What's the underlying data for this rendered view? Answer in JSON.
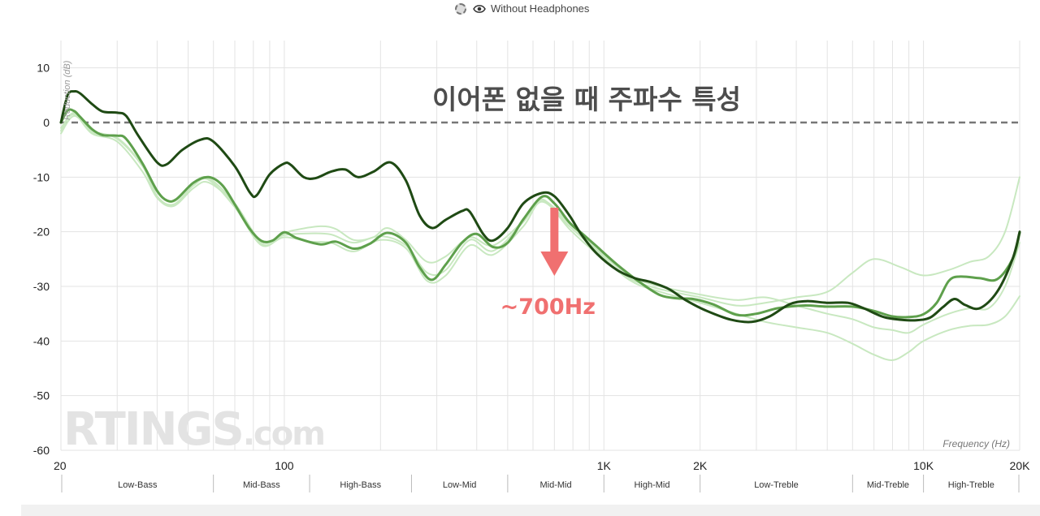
{
  "legend": {
    "label": "Without Headphones",
    "toggle_icon": "dashed-circle-icon",
    "visibility_icon": "eye-icon"
  },
  "annotation": {
    "title": "이어폰 없을 때 주파수 특성",
    "freq_label": "~700Hz",
    "color": "#f07070"
  },
  "watermark": "RTINGS.com",
  "colors": {
    "dark_line": "#1f4a14",
    "mid_line": "#5ea04c",
    "light_line": "#c8e8c0",
    "grid": "#e3e3e3",
    "zero_line": "#777777"
  },
  "chart_data": {
    "type": "line",
    "title": "",
    "xlabel": "Frequency (Hz)",
    "ylabel": "Reduction (dB)",
    "xscale": "log",
    "xlim": [
      20,
      20000
    ],
    "ylim": [
      -60,
      15
    ],
    "yticks": [
      10,
      0,
      -10,
      -20,
      -30,
      -40,
      -50,
      -60
    ],
    "xticks": [
      {
        "value": 20,
        "label": "20"
      },
      {
        "value": 100,
        "label": "100"
      },
      {
        "value": 1000,
        "label": "1K"
      },
      {
        "value": 2000,
        "label": "2K"
      },
      {
        "value": 10000,
        "label": "10K"
      },
      {
        "value": 20000,
        "label": "20K"
      }
    ],
    "bands": [
      {
        "label": "Low-Bass",
        "from": 20,
        "to": 60
      },
      {
        "label": "Mid-Bass",
        "from": 60,
        "to": 120
      },
      {
        "label": "High-Bass",
        "from": 120,
        "to": 250
      },
      {
        "label": "Low-Mid",
        "from": 250,
        "to": 500
      },
      {
        "label": "Mid-Mid",
        "from": 500,
        "to": 1000
      },
      {
        "label": "High-Mid",
        "from": 1000,
        "to": 2000
      },
      {
        "label": "Low-Treble",
        "from": 2000,
        "to": 6000
      },
      {
        "label": "Mid-Treble",
        "from": 6000,
        "to": 10000
      },
      {
        "label": "High-Treble",
        "from": 10000,
        "to": 20000
      }
    ],
    "reference_line": 0,
    "series": [
      {
        "role": "measured-dark",
        "points": [
          [
            20,
            0
          ],
          [
            21,
            5
          ],
          [
            22,
            5.7
          ],
          [
            23,
            5.3
          ],
          [
            25,
            3.4
          ],
          [
            27,
            2
          ],
          [
            30,
            1.8
          ],
          [
            32,
            1.2
          ],
          [
            35,
            -2.5
          ],
          [
            40,
            -7.3
          ],
          [
            43,
            -7.6
          ],
          [
            48,
            -5
          ],
          [
            55,
            -3.1
          ],
          [
            60,
            -3.5
          ],
          [
            70,
            -8
          ],
          [
            78,
            -12.8
          ],
          [
            82,
            -13.3
          ],
          [
            90,
            -9.5
          ],
          [
            100,
            -7.5
          ],
          [
            105,
            -7.8
          ],
          [
            115,
            -10
          ],
          [
            125,
            -10.2
          ],
          [
            140,
            -9
          ],
          [
            155,
            -8.6
          ],
          [
            170,
            -10
          ],
          [
            190,
            -9
          ],
          [
            215,
            -7.3
          ],
          [
            240,
            -10.6
          ],
          [
            265,
            -17
          ],
          [
            290,
            -19.3
          ],
          [
            320,
            -17.8
          ],
          [
            360,
            -16.2
          ],
          [
            380,
            -16.3
          ],
          [
            420,
            -20.5
          ],
          [
            450,
            -21.6
          ],
          [
            500,
            -19.3
          ],
          [
            560,
            -14.8
          ],
          [
            640,
            -12.9
          ],
          [
            700,
            -13.5
          ],
          [
            780,
            -17
          ],
          [
            850,
            -20.5
          ],
          [
            950,
            -24
          ],
          [
            1100,
            -27
          ],
          [
            1250,
            -28.5
          ],
          [
            1400,
            -29.2
          ],
          [
            1600,
            -30.5
          ],
          [
            1800,
            -32.5
          ],
          [
            2100,
            -34.5
          ],
          [
            2500,
            -36.1
          ],
          [
            2900,
            -36.5
          ],
          [
            3300,
            -35.5
          ],
          [
            3800,
            -33.3
          ],
          [
            4300,
            -32.7
          ],
          [
            5000,
            -33
          ],
          [
            5800,
            -33
          ],
          [
            6500,
            -34
          ],
          [
            7500,
            -35.6
          ],
          [
            8500,
            -36.1
          ],
          [
            9500,
            -36.2
          ],
          [
            10500,
            -35.7
          ],
          [
            11500,
            -33.8
          ],
          [
            12500,
            -32.3
          ],
          [
            13500,
            -33.4
          ],
          [
            15000,
            -34
          ],
          [
            17000,
            -31
          ],
          [
            19000,
            -25
          ],
          [
            20000,
            -20
          ]
        ]
      },
      {
        "role": "measured-mid",
        "points": [
          [
            20,
            0
          ],
          [
            21,
            2.2
          ],
          [
            22,
            2.1
          ],
          [
            23,
            1
          ],
          [
            25,
            -1.2
          ],
          [
            27,
            -2.3
          ],
          [
            30,
            -2.4
          ],
          [
            32,
            -3
          ],
          [
            36,
            -7.5
          ],
          [
            40,
            -12.5
          ],
          [
            43,
            -14.3
          ],
          [
            46,
            -14
          ],
          [
            52,
            -11
          ],
          [
            58,
            -10
          ],
          [
            64,
            -11.5
          ],
          [
            70,
            -15
          ],
          [
            78,
            -19.5
          ],
          [
            85,
            -21.7
          ],
          [
            92,
            -21.6
          ],
          [
            100,
            -20.1
          ],
          [
            110,
            -21.2
          ],
          [
            130,
            -22.3
          ],
          [
            145,
            -21.8
          ],
          [
            165,
            -23.1
          ],
          [
            185,
            -22.2
          ],
          [
            210,
            -20.2
          ],
          [
            240,
            -22
          ],
          [
            265,
            -26.5
          ],
          [
            290,
            -28.8
          ],
          [
            320,
            -26
          ],
          [
            360,
            -22
          ],
          [
            400,
            -20.4
          ],
          [
            450,
            -22.8
          ],
          [
            500,
            -22
          ],
          [
            560,
            -17.7
          ],
          [
            640,
            -13.6
          ],
          [
            700,
            -14.8
          ],
          [
            780,
            -18.3
          ],
          [
            850,
            -20.2
          ],
          [
            950,
            -22.7
          ],
          [
            1100,
            -26
          ],
          [
            1300,
            -29.3
          ],
          [
            1500,
            -31.6
          ],
          [
            1700,
            -32.2
          ],
          [
            1900,
            -32.3
          ],
          [
            2200,
            -33.3
          ],
          [
            2600,
            -35.2
          ],
          [
            3000,
            -35
          ],
          [
            3500,
            -34
          ],
          [
            4200,
            -33.5
          ],
          [
            5000,
            -33.7
          ],
          [
            6000,
            -33.7
          ],
          [
            7000,
            -34.5
          ],
          [
            8000,
            -35.5
          ],
          [
            9000,
            -35.6
          ],
          [
            10000,
            -35.1
          ],
          [
            11000,
            -33
          ],
          [
            12000,
            -29
          ],
          [
            13000,
            -28.2
          ],
          [
            15000,
            -28.5
          ],
          [
            17000,
            -28.7
          ],
          [
            19000,
            -25
          ],
          [
            20000,
            -20.2
          ]
        ]
      },
      {
        "role": "individual-light-1",
        "points": [
          [
            20,
            -2
          ],
          [
            22,
            1.2
          ],
          [
            25,
            -1.5
          ],
          [
            30,
            -3
          ],
          [
            36,
            -8
          ],
          [
            40,
            -13.5
          ],
          [
            45,
            -15
          ],
          [
            52,
            -11.5
          ],
          [
            58,
            -10.5
          ],
          [
            70,
            -15.5
          ],
          [
            85,
            -22.5
          ],
          [
            100,
            -20.3
          ],
          [
            110,
            -19.6
          ],
          [
            130,
            -19
          ],
          [
            145,
            -19.5
          ],
          [
            165,
            -21.5
          ],
          [
            190,
            -21
          ],
          [
            210,
            -19.3
          ],
          [
            240,
            -21.5
          ],
          [
            280,
            -25.5
          ],
          [
            320,
            -24.5
          ],
          [
            380,
            -21
          ],
          [
            450,
            -22.5
          ],
          [
            560,
            -18
          ],
          [
            640,
            -14
          ],
          [
            780,
            -19.5
          ],
          [
            950,
            -24
          ],
          [
            1200,
            -28.5
          ],
          [
            1500,
            -30.5
          ],
          [
            2000,
            -32
          ],
          [
            2600,
            -33.5
          ],
          [
            3200,
            -33
          ],
          [
            4000,
            -32
          ],
          [
            5000,
            -31
          ],
          [
            6000,
            -27.5
          ],
          [
            7000,
            -25
          ],
          [
            8500,
            -26.5
          ],
          [
            10000,
            -28
          ],
          [
            12000,
            -27
          ],
          [
            14000,
            -25.5
          ],
          [
            16000,
            -24.5
          ],
          [
            18000,
            -20
          ],
          [
            20000,
            -10
          ]
        ]
      },
      {
        "role": "individual-light-2",
        "points": [
          [
            20,
            -1
          ],
          [
            22,
            1.5
          ],
          [
            25,
            -2
          ],
          [
            30,
            -3.5
          ],
          [
            36,
            -9
          ],
          [
            40,
            -13.8
          ],
          [
            45,
            -15.3
          ],
          [
            52,
            -12
          ],
          [
            58,
            -11
          ],
          [
            70,
            -15
          ],
          [
            85,
            -22.2
          ],
          [
            100,
            -21
          ],
          [
            120,
            -21.8
          ],
          [
            140,
            -22
          ],
          [
            165,
            -23.6
          ],
          [
            200,
            -21.5
          ],
          [
            240,
            -23
          ],
          [
            280,
            -29
          ],
          [
            320,
            -28
          ],
          [
            380,
            -22.5
          ],
          [
            450,
            -24.2
          ],
          [
            560,
            -19
          ],
          [
            640,
            -14.5
          ],
          [
            780,
            -19
          ],
          [
            950,
            -23.5
          ],
          [
            1200,
            -28.8
          ],
          [
            1500,
            -31
          ],
          [
            2000,
            -33
          ],
          [
            2600,
            -35
          ],
          [
            3200,
            -36.5
          ],
          [
            4000,
            -37.5
          ],
          [
            5000,
            -38.5
          ],
          [
            6000,
            -40.5
          ],
          [
            7000,
            -42.5
          ],
          [
            8000,
            -43.5
          ],
          [
            9000,
            -42
          ],
          [
            10000,
            -40
          ],
          [
            12000,
            -38
          ],
          [
            14000,
            -37.2
          ],
          [
            16000,
            -37
          ],
          [
            18000,
            -35.5
          ],
          [
            20000,
            -31.8
          ]
        ]
      },
      {
        "role": "individual-light-3",
        "points": [
          [
            20,
            -1.5
          ],
          [
            22,
            1.8
          ],
          [
            25,
            -1.8
          ],
          [
            30,
            -2.8
          ],
          [
            36,
            -7.8
          ],
          [
            40,
            -12.8
          ],
          [
            45,
            -14.5
          ],
          [
            52,
            -11
          ],
          [
            58,
            -10.2
          ],
          [
            70,
            -14.8
          ],
          [
            85,
            -21.8
          ],
          [
            100,
            -20.6
          ],
          [
            120,
            -20.3
          ],
          [
            140,
            -20.5
          ],
          [
            165,
            -22
          ],
          [
            200,
            -20.8
          ],
          [
            240,
            -22.5
          ],
          [
            280,
            -27.5
          ],
          [
            320,
            -27
          ],
          [
            380,
            -21.5
          ],
          [
            450,
            -23.5
          ],
          [
            560,
            -18.2
          ],
          [
            640,
            -14.2
          ],
          [
            780,
            -18.5
          ],
          [
            950,
            -23.2
          ],
          [
            1200,
            -28
          ],
          [
            1500,
            -30
          ],
          [
            2000,
            -31.5
          ],
          [
            2600,
            -32.5
          ],
          [
            3200,
            -32
          ],
          [
            4000,
            -33.5
          ],
          [
            5000,
            -35
          ],
          [
            6000,
            -36
          ],
          [
            7000,
            -37.5
          ],
          [
            8000,
            -38
          ],
          [
            9000,
            -38.5
          ],
          [
            10000,
            -37
          ],
          [
            12000,
            -35
          ],
          [
            14000,
            -34
          ],
          [
            16000,
            -34
          ],
          [
            18000,
            -30
          ],
          [
            20000,
            -22
          ]
        ]
      }
    ]
  }
}
